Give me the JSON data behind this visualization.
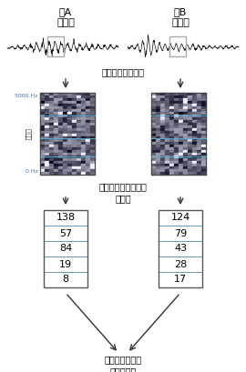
{
  "title_A": "音A",
  "title_B": "音B",
  "subtitle_A": "「た」",
  "subtitle_B": "「だ」",
  "step1_text": "単純な波形に分解",
  "step2_text": "各波を周波数ごとに\n数値化",
  "step3_text": "数値比較による\n総合的解析",
  "freq_label_top": "5000 Hz",
  "freq_label_bottom": "0 Hz",
  "freq_axis_label": "周波数",
  "values_A": [
    138,
    57,
    84,
    19,
    8
  ],
  "values_B": [
    124,
    79,
    43,
    28,
    17
  ],
  "bg_color": "#ffffff",
  "text_color": "#000000",
  "arrow_color": "#333333",
  "box_border_color": "#555555",
  "row_line_color": "#6699bb",
  "wave_color": "#111111",
  "highlight_box_color": "#aaaaaa",
  "freq_text_color": "#4477aa"
}
